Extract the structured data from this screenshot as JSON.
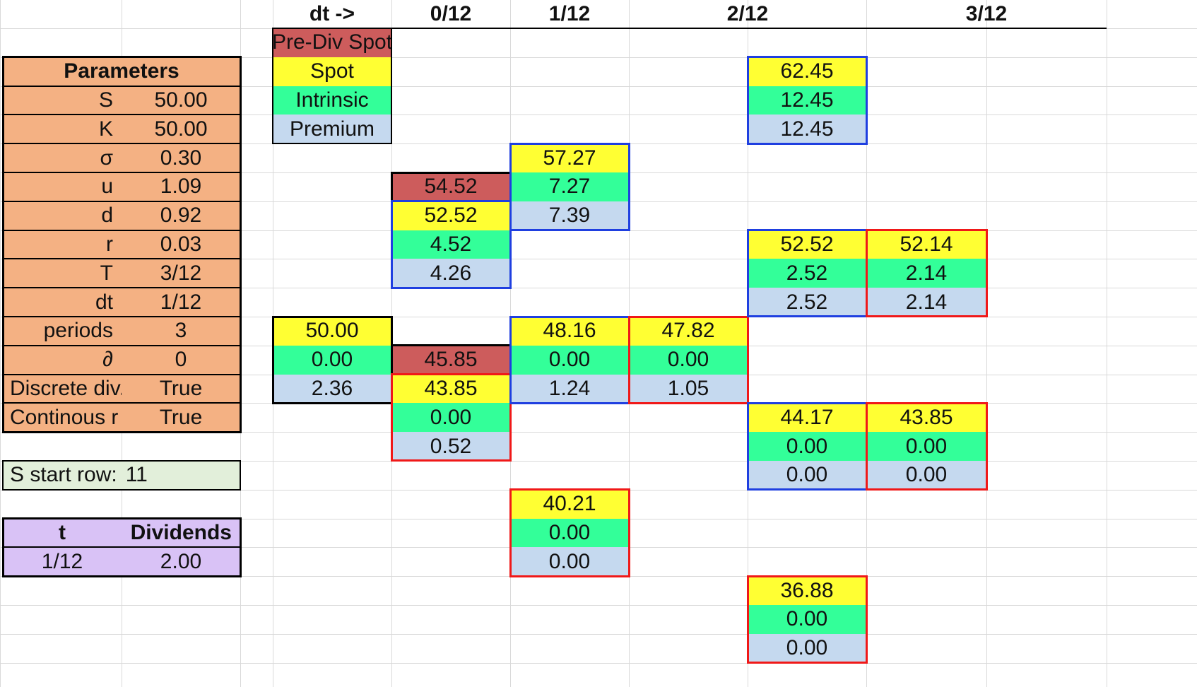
{
  "header": {
    "dt_label": "dt ->",
    "periods": [
      "0/12",
      "1/12",
      "2/12",
      "3/12"
    ]
  },
  "legend": [
    {
      "label": "Pre-Div Spot",
      "kind": "prediv"
    },
    {
      "label": "Spot",
      "kind": "spot"
    },
    {
      "label": "Intrinsic",
      "kind": "intrinsic"
    },
    {
      "label": "Premium",
      "kind": "premium"
    }
  ],
  "parameters": {
    "title": "Parameters",
    "rows": [
      {
        "name": "S",
        "value": "50.00"
      },
      {
        "name": "K",
        "value": "50.00"
      },
      {
        "name": "σ",
        "value": "0.30"
      },
      {
        "name": "u",
        "value": "1.09"
      },
      {
        "name": "d",
        "value": "0.92"
      },
      {
        "name": "r",
        "value": "0.03"
      },
      {
        "name": "T",
        "value": "3/12"
      },
      {
        "name": "dt",
        "value": "1/12"
      },
      {
        "name": "periods",
        "value": "3"
      },
      {
        "name": "∂",
        "value": "0"
      },
      {
        "name": "Discrete div.",
        "value": "True"
      },
      {
        "name": "Continous r",
        "value": "True"
      }
    ]
  },
  "s_start": {
    "label": "S start row:",
    "value": "11"
  },
  "dividends": {
    "headers": [
      "t",
      "Dividends"
    ],
    "rows": [
      {
        "t": "1/12",
        "amount": "2.00"
      }
    ]
  },
  "tree": {
    "nodes": [
      {
        "col": 3,
        "row": 10,
        "values": [
          "50.00",
          "0.00",
          "2.36"
        ],
        "border": "black"
      },
      {
        "col": 4,
        "row": 6,
        "prediv": "54.52",
        "values": [
          "52.52",
          "4.52",
          "4.26"
        ],
        "border": "blue"
      },
      {
        "col": 4,
        "row": 12,
        "prediv": "45.85",
        "values": [
          "43.85",
          "0.00",
          "0.52"
        ],
        "border": "red"
      },
      {
        "col": 5,
        "row": 4,
        "values": [
          "57.27",
          "7.27",
          "7.39"
        ],
        "border": "blue"
      },
      {
        "col": 5,
        "row": 10,
        "values": [
          "48.16",
          "0.00",
          "1.24"
        ],
        "border": "blue"
      },
      {
        "col": 6,
        "row": 10,
        "values": [
          "47.82",
          "0.00",
          "1.05"
        ],
        "border": "red"
      },
      {
        "col": 5,
        "row": 16,
        "values": [
          "40.21",
          "0.00",
          "0.00"
        ],
        "border": "red"
      },
      {
        "col": 7,
        "row": 1,
        "values": [
          "62.45",
          "12.45",
          "12.45"
        ],
        "border": "blue"
      },
      {
        "col": 7,
        "row": 7,
        "values": [
          "52.52",
          "2.52",
          "2.52"
        ],
        "border": "blue"
      },
      {
        "col": 8,
        "row": 7,
        "values": [
          "52.14",
          "2.14",
          "2.14"
        ],
        "border": "red"
      },
      {
        "col": 7,
        "row": 13,
        "values": [
          "44.17",
          "0.00",
          "0.00"
        ],
        "border": "blue"
      },
      {
        "col": 8,
        "row": 13,
        "values": [
          "43.85",
          "0.00",
          "0.00"
        ],
        "border": "red"
      },
      {
        "col": 7,
        "row": 19,
        "values": [
          "36.88",
          "0.00",
          "0.00"
        ],
        "border": "red"
      }
    ]
  },
  "colors": {
    "parameters_bg": "#f4b183",
    "s_start_bg": "#e2efda",
    "dividends_bg": "#d9c2f6",
    "prediv": "#cd5c5c",
    "spot": "#ffff33",
    "intrinsic": "#33ff99",
    "premium": "#c5d9ef",
    "border_black": "#000000",
    "border_blue": "#1f3fe0",
    "border_red": "#f01818"
  }
}
